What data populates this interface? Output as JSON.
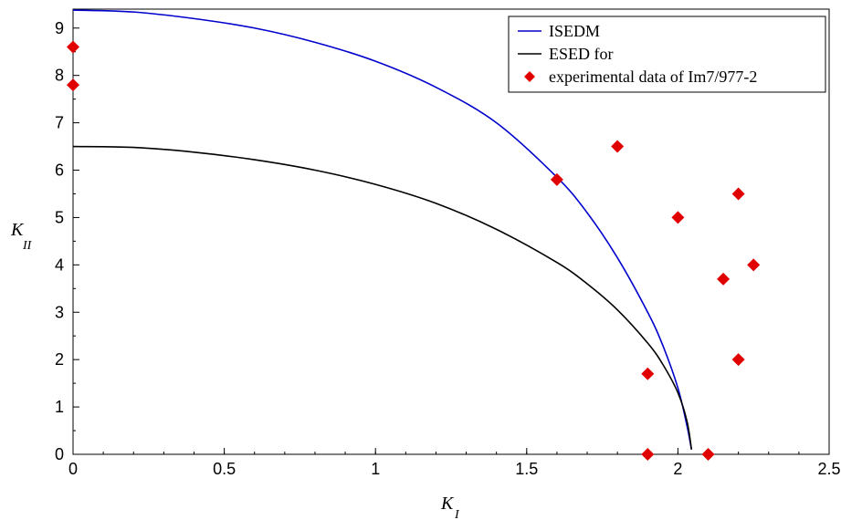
{
  "chart_data": {
    "type": "scatter",
    "title": "",
    "xlabel": {
      "main": "K",
      "sub": "I"
    },
    "ylabel": {
      "main": "K",
      "sub": "II"
    },
    "xlim": [
      0,
      2.5
    ],
    "ylim": [
      0,
      9.4
    ],
    "x_ticks": [
      0,
      0.5,
      1,
      1.5,
      2,
      2.5
    ],
    "x_tick_labels": [
      "0",
      "0.5",
      "1",
      "1.5",
      "2",
      "2.5"
    ],
    "y_ticks": [
      0,
      1,
      2,
      3,
      4,
      5,
      6,
      7,
      8,
      9
    ],
    "y_tick_labels": [
      "0",
      "1",
      "2",
      "3",
      "4",
      "5",
      "6",
      "7",
      "8",
      "9"
    ],
    "grid": false,
    "legend_position": "top-right",
    "series": [
      {
        "name": "ISEDM",
        "type": "line",
        "color": "#0000cc",
        "x": [
          0,
          0.2,
          0.4,
          0.6,
          0.8,
          1.0,
          1.2,
          1.4,
          1.6,
          1.7,
          1.8,
          1.9,
          1.95,
          2.0,
          2.03,
          2.045
        ],
        "y": [
          9.38,
          9.34,
          9.2,
          9.0,
          8.7,
          8.3,
          7.75,
          7.0,
          5.85,
          5.1,
          4.15,
          3.0,
          2.3,
          1.4,
          0.6,
          0.1
        ]
      },
      {
        "name": "ESED for",
        "type": "line",
        "color": "#000000",
        "x": [
          0,
          0.2,
          0.4,
          0.6,
          0.8,
          1.0,
          1.2,
          1.4,
          1.6,
          1.7,
          1.8,
          1.9,
          1.95,
          2.0,
          2.03,
          2.045
        ],
        "y": [
          6.5,
          6.48,
          6.38,
          6.22,
          6.0,
          5.7,
          5.3,
          4.75,
          4.05,
          3.6,
          3.05,
          2.35,
          1.9,
          1.3,
          0.7,
          0.1
        ]
      },
      {
        "name": "experimental data of Im7/977-2",
        "type": "scatter",
        "marker": "diamond",
        "color": "#e00000",
        "points": [
          [
            0,
            8.6
          ],
          [
            0,
            7.8
          ],
          [
            1.6,
            5.8
          ],
          [
            1.8,
            6.5
          ],
          [
            2.0,
            5.0
          ],
          [
            2.2,
            5.5
          ],
          [
            2.15,
            3.7
          ],
          [
            2.25,
            4.0
          ],
          [
            1.9,
            1.7
          ],
          [
            2.2,
            2.0
          ],
          [
            1.9,
            0.0
          ],
          [
            2.1,
            0.0
          ]
        ]
      }
    ]
  }
}
